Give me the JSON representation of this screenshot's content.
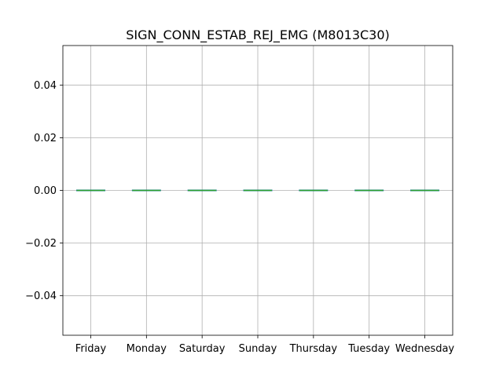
{
  "chart_data": {
    "type": "box",
    "title": "SIGN_CONN_ESTAB_REJ_EMG (M8013C30)",
    "xlabel": "",
    "ylabel": "",
    "categories": [
      "Friday",
      "Monday",
      "Saturday",
      "Sunday",
      "Thursday",
      "Tuesday",
      "Wednesday"
    ],
    "values": [
      0,
      0,
      0,
      0,
      0,
      0,
      0
    ],
    "ylim": [
      -0.055,
      0.055
    ],
    "yticks": [
      -0.04,
      -0.02,
      0.0,
      0.02,
      0.04
    ],
    "ytick_labels": [
      "−0.04",
      "−0.02",
      "0.00",
      "0.02",
      "0.04"
    ],
    "grid": true,
    "colors": {
      "median": "#2ca02c",
      "box": "#1f77b4",
      "grid": "#b0b0b0",
      "axes": "#000000"
    }
  }
}
